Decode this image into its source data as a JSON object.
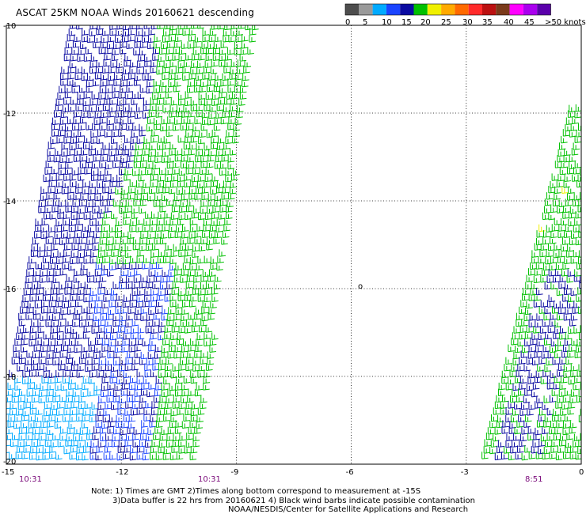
{
  "title": "ASCAT 25KM NOAA Winds 20160621 descending",
  "legend": {
    "colors": [
      "#4d4d4d",
      "#9a9a9a",
      "#00aaff",
      "#1a44ff",
      "#0a0aa0",
      "#00c000",
      "#f0f000",
      "#ffaa00",
      "#ff6a00",
      "#ff2a2a",
      "#bb1111",
      "#7a3a1a",
      "#ff00ff",
      "#aa00ee",
      "#5a00aa"
    ],
    "labels": [
      "0",
      "5",
      "10",
      "15",
      "20",
      "25",
      "30",
      "35",
      "40",
      "45",
      ">50 knots"
    ]
  },
  "axes": {
    "lon_ticks": [
      "-15",
      "-12",
      "-9",
      "-6",
      "-3",
      "0"
    ],
    "lat_ticks": [
      "-10",
      "-12",
      "-14",
      "-16",
      "-18",
      "-20"
    ]
  },
  "swath_times": [
    "10:31",
    "10:31",
    "8:51"
  ],
  "island_marker": "o",
  "notes": {
    "line1": "Note: 1) Times are GMT 2)Times along bottom correspond to measurement at -15S",
    "line2": "3)Data buffer is 22 hrs from 20160621 4) Black wind barbs indicate possible contamination",
    "line3": "NOAA/NESDIS/Center for Satellite Applications and Research"
  },
  "colors": {
    "time_label": "#7a0a7a",
    "speed_low": "#0a0aa0",
    "speed_mid": "#00c000",
    "speed_high": "#f0f000",
    "speed_lowest": "#00aaff"
  }
}
